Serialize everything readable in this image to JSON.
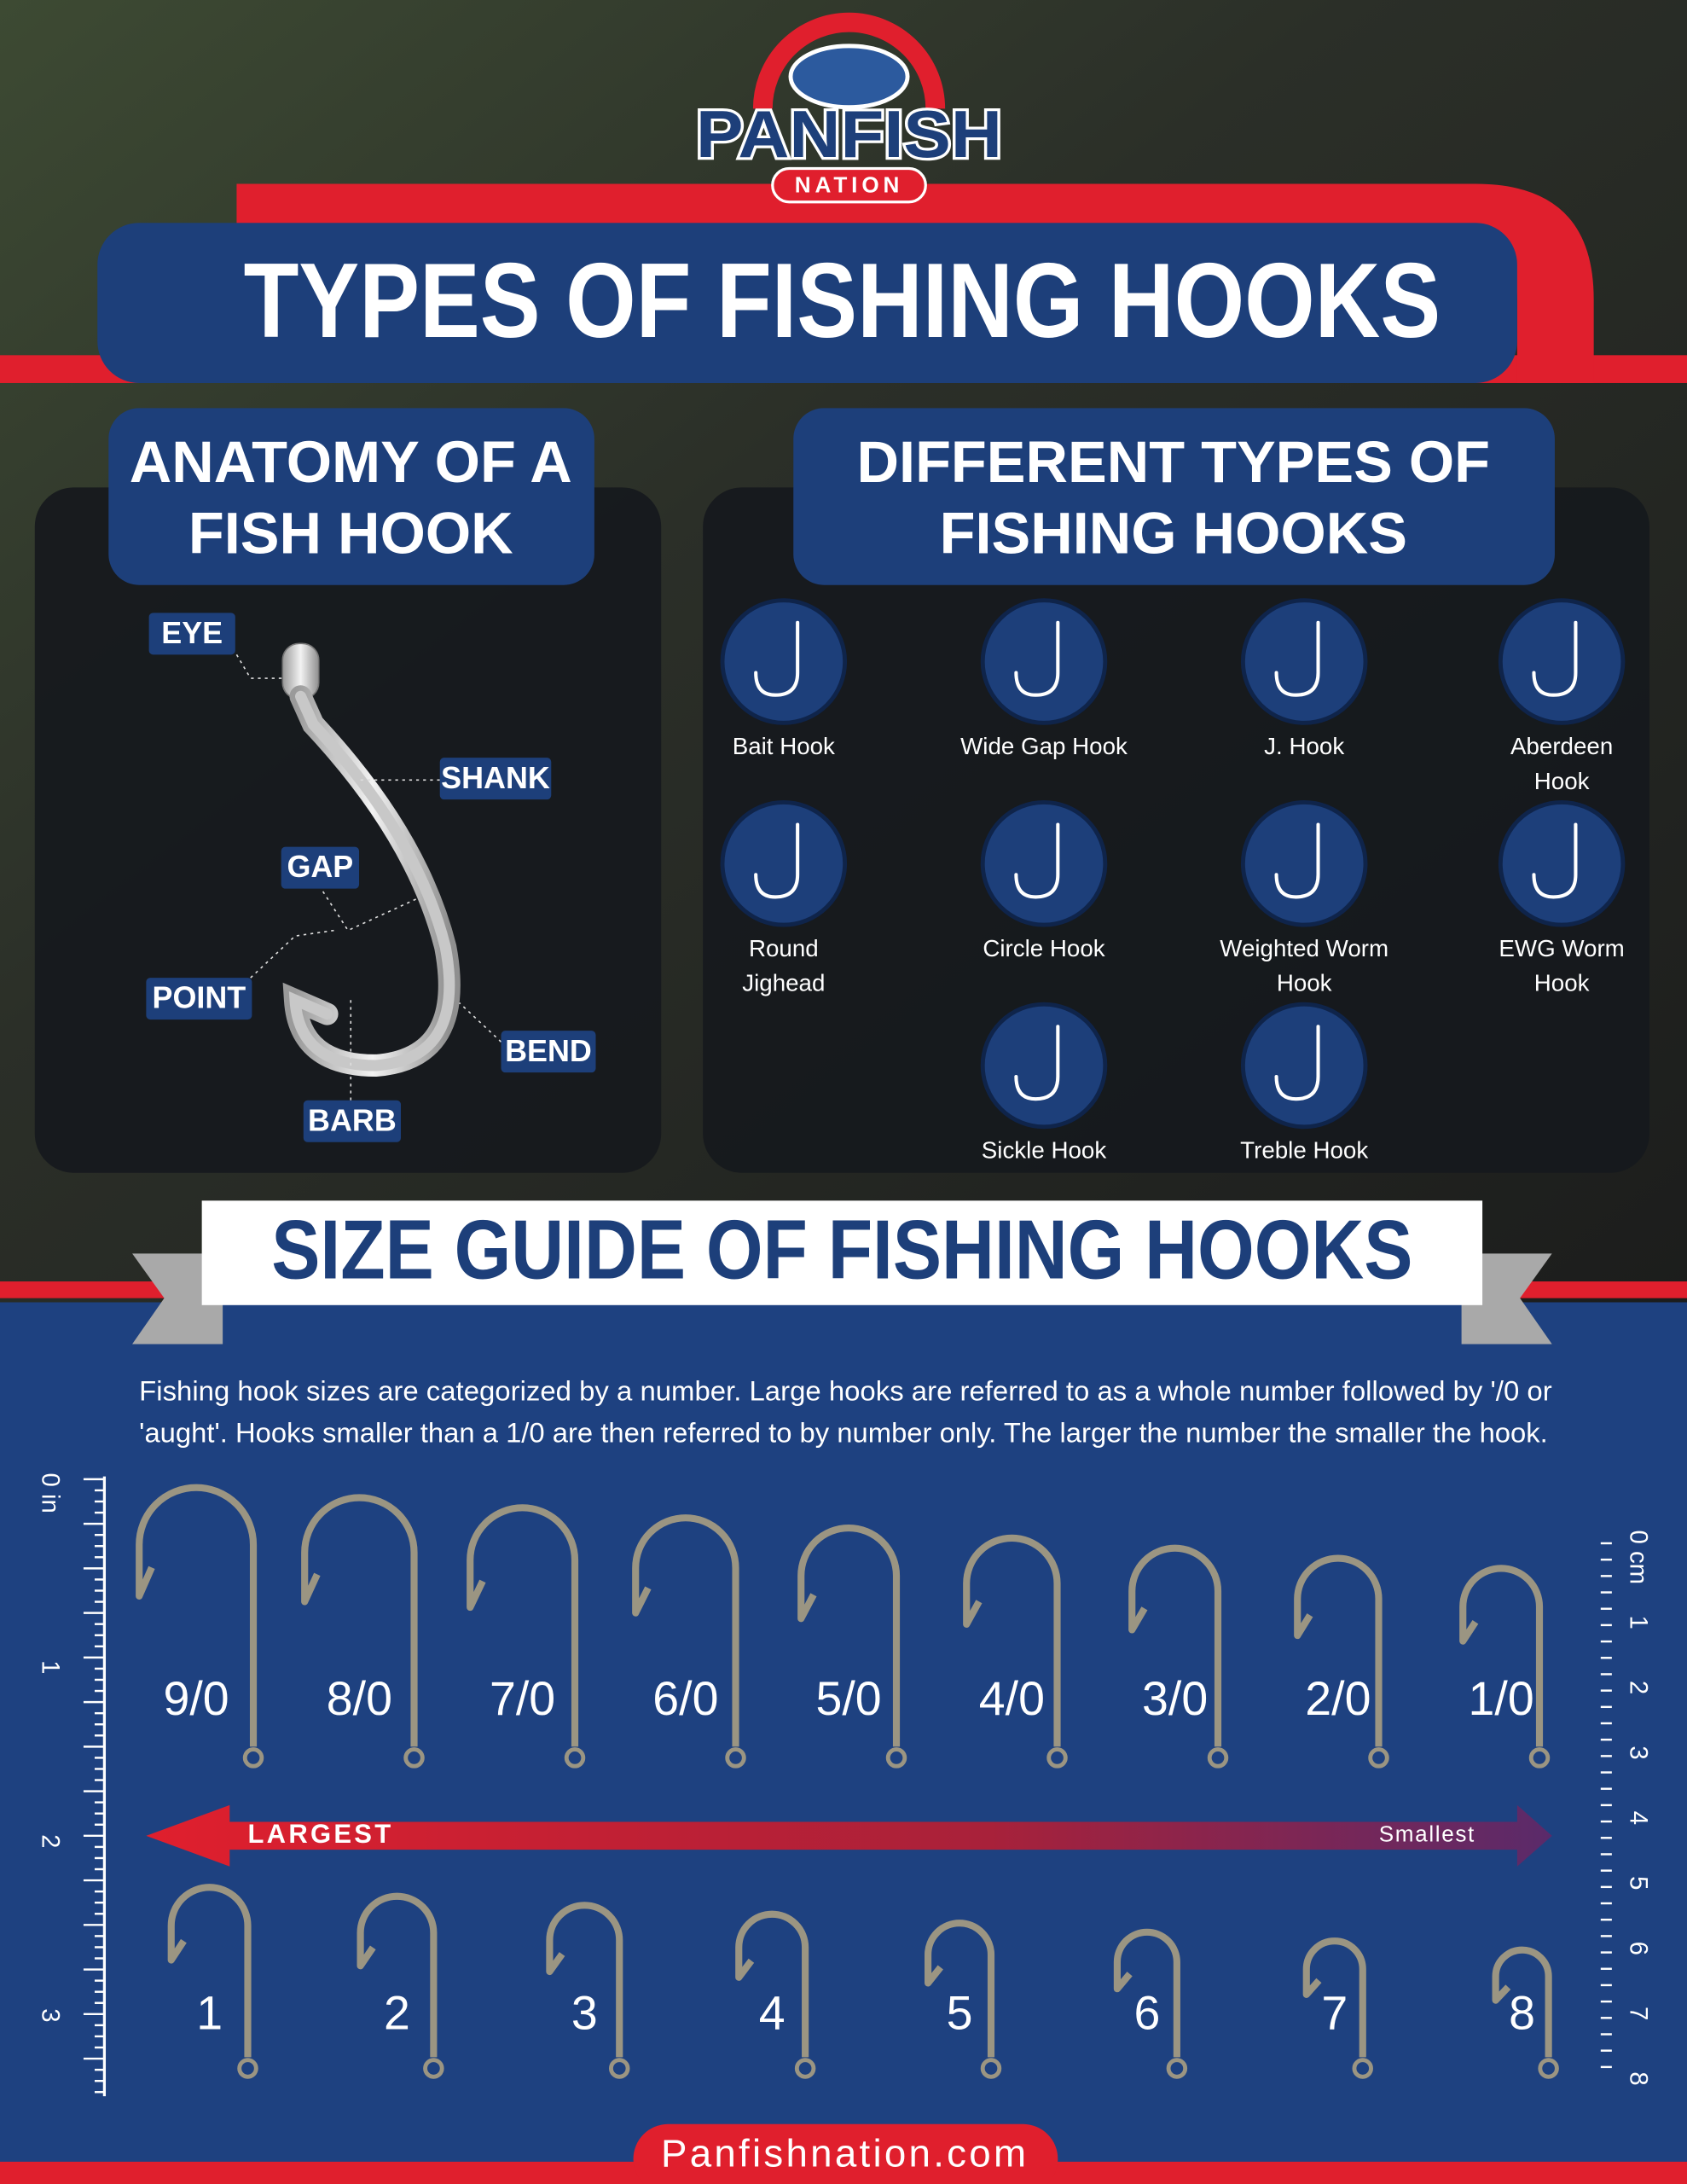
{
  "brand": {
    "name": "PANFISH",
    "sub": "NATION"
  },
  "title": "TYPES OF FISHING HOOKS",
  "anatomy": {
    "heading": [
      "ANATOMY OF A",
      "FISH HOOK"
    ],
    "labels": {
      "eye": "EYE",
      "shank": "SHANK",
      "gap": "GAP",
      "point": "POINT",
      "bend": "BEND",
      "barb": "BARB"
    }
  },
  "types": {
    "heading": [
      "DIFFERENT TYPES OF",
      "FISHING HOOKS"
    ],
    "items": [
      [
        "Bait Hook"
      ],
      [
        "Wide Gap Hook"
      ],
      [
        "J. Hook"
      ],
      [
        "Aberdeen",
        "Hook"
      ],
      [
        "Round",
        "Jighead"
      ],
      [
        "Circle Hook"
      ],
      [
        "Weighted Worm",
        "Hook"
      ],
      [
        "EWG Worm",
        "Hook"
      ],
      [
        "Sickle Hook"
      ],
      [
        "Treble Hook"
      ]
    ]
  },
  "size_guide": {
    "heading": "SIZE GUIDE OF FISHING HOOKS",
    "description": [
      "Fishing hook sizes are categorized by a number. Large hooks are referred to as a whole number followed by '/0 or",
      "'aught'. Hooks smaller than a 1/0 are then referred to by number only. The larger the number the smaller the hook."
    ],
    "large_sizes": [
      "9/0",
      "8/0",
      "7/0",
      "6/0",
      "5/0",
      "4/0",
      "3/0",
      "2/0",
      "1/0"
    ],
    "small_sizes": [
      "1",
      "2",
      "3",
      "4",
      "5",
      "6",
      "7",
      "8"
    ],
    "arrow": {
      "left": "LARGEST",
      "right": "Smallest"
    },
    "inch_ruler": [
      "0 in",
      "1",
      "2",
      "3"
    ],
    "cm_ruler": [
      "0 cm",
      "1",
      "2",
      "3",
      "4",
      "5",
      "6",
      "7",
      "8"
    ]
  },
  "footer": "Panfishnation.com"
}
